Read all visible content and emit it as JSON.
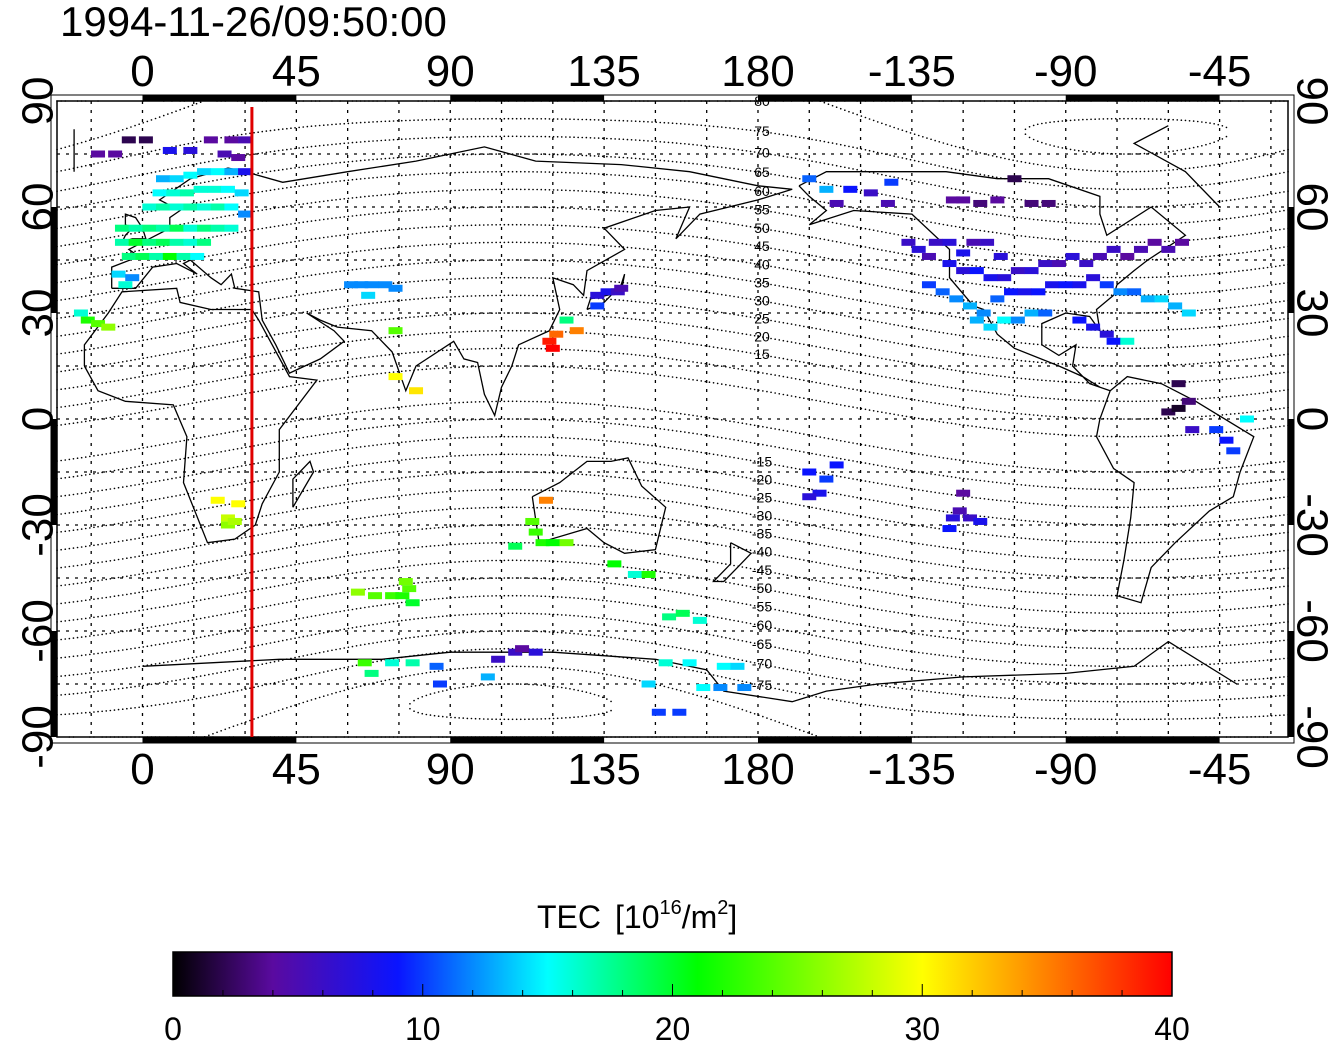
{
  "title": "1994-11-26/09:50:00",
  "colorbar": {
    "label": "TEC",
    "unit_prefix": "[10",
    "unit_exp": "16",
    "unit_mid": "/m",
    "unit_exp2": "2",
    "unit_suffix": "]",
    "ticks": [
      "0",
      "10",
      "20",
      "30",
      "40"
    ],
    "range": [
      0,
      40
    ],
    "stops": [
      {
        "v": 0,
        "c": "#000000"
      },
      {
        "v": 4,
        "c": "#5a0aa0"
      },
      {
        "v": 9,
        "c": "#0a14ff"
      },
      {
        "v": 15,
        "c": "#00ffff"
      },
      {
        "v": 21,
        "c": "#00ff00"
      },
      {
        "v": 30,
        "c": "#ffff00"
      },
      {
        "v": 34,
        "c": "#ff9a00"
      },
      {
        "v": 40,
        "c": "#ff0000"
      }
    ]
  },
  "chart_data": {
    "type": "scatter",
    "title": "1994-11-26/09:50:00",
    "x_ticks_top": [
      "0",
      "45",
      "90",
      "135",
      "180",
      "-135",
      "-90",
      "-45"
    ],
    "x_ticks_bottom": [
      "0",
      "45",
      "90",
      "135",
      "180",
      "-135",
      "-90",
      "-45"
    ],
    "y_ticks_left": [
      "90",
      "60",
      "30",
      "0",
      "-30",
      "-60",
      "-90"
    ],
    "y_ticks_right": [
      "90",
      "60",
      "30",
      "0",
      "-30",
      "-60",
      "-90"
    ],
    "lon_range": [
      -25,
      335
    ],
    "lat_range": [
      -90,
      90
    ],
    "terminator_lon": 32,
    "terminator_color": "#e00000",
    "geomag_pole": {
      "lat": 80,
      "lon": -72
    },
    "geomag_labels_north": [
      "80",
      "75",
      "70",
      "65",
      "60",
      "55",
      "50",
      "45",
      "40",
      "35",
      "30",
      "25",
      "20",
      "15"
    ],
    "geomag_labels_south": [
      "-15",
      "-20",
      "-25",
      "-30",
      "-35",
      "-40",
      "-45",
      "-50",
      "-55",
      "-60",
      "-65",
      "-70",
      "-75"
    ],
    "points_lon_lat_tec": [
      [
        -13,
        75,
        4
      ],
      [
        -8,
        75,
        4
      ],
      [
        -4,
        79,
        2
      ],
      [
        1,
        79,
        2
      ],
      [
        8,
        76,
        8
      ],
      [
        14,
        76,
        7
      ],
      [
        20,
        79,
        4
      ],
      [
        26,
        79,
        4
      ],
      [
        30,
        79,
        5
      ],
      [
        24,
        75,
        5
      ],
      [
        28,
        74,
        4
      ],
      [
        6,
        68,
        13
      ],
      [
        10,
        68,
        14
      ],
      [
        14,
        69,
        15
      ],
      [
        18,
        70,
        14
      ],
      [
        22,
        70,
        15
      ],
      [
        26,
        70,
        13
      ],
      [
        30,
        70,
        8
      ],
      [
        5,
        64,
        15
      ],
      [
        9,
        64,
        16
      ],
      [
        13,
        64,
        17
      ],
      [
        17,
        65,
        16
      ],
      [
        21,
        65,
        16
      ],
      [
        25,
        65,
        15
      ],
      [
        29,
        64,
        14
      ],
      [
        2,
        60,
        16
      ],
      [
        6,
        60,
        17
      ],
      [
        10,
        60,
        16
      ],
      [
        14,
        60,
        17
      ],
      [
        18,
        60,
        16
      ],
      [
        22,
        60,
        17
      ],
      [
        26,
        60,
        15
      ],
      [
        30,
        58,
        12
      ],
      [
        -6,
        54,
        18
      ],
      [
        -2,
        54,
        17
      ],
      [
        2,
        54,
        18
      ],
      [
        6,
        54,
        17
      ],
      [
        10,
        54,
        19
      ],
      [
        14,
        54,
        16
      ],
      [
        18,
        54,
        18
      ],
      [
        22,
        54,
        17
      ],
      [
        26,
        54,
        16
      ],
      [
        -6,
        50,
        17
      ],
      [
        -2,
        50,
        20
      ],
      [
        2,
        50,
        18
      ],
      [
        6,
        50,
        19
      ],
      [
        10,
        50,
        17
      ],
      [
        14,
        50,
        16
      ],
      [
        18,
        50,
        18
      ],
      [
        -4,
        46,
        18
      ],
      [
        0,
        46,
        19
      ],
      [
        4,
        46,
        17
      ],
      [
        8,
        46,
        21
      ],
      [
        12,
        46,
        17
      ],
      [
        16,
        46,
        15
      ],
      [
        -7,
        41,
        14
      ],
      [
        -3,
        40,
        12
      ],
      [
        -5,
        38,
        16
      ],
      [
        -18,
        30,
        16
      ],
      [
        -16,
        28,
        22
      ],
      [
        -13,
        27,
        24
      ],
      [
        -10,
        26,
        26
      ],
      [
        61,
        38,
        12
      ],
      [
        64,
        38,
        12
      ],
      [
        67,
        38,
        12
      ],
      [
        71,
        38,
        12
      ],
      [
        74,
        37,
        12
      ],
      [
        66,
        35,
        14
      ],
      [
        74,
        25,
        24
      ],
      [
        74,
        12,
        30
      ],
      [
        80,
        8,
        31
      ],
      [
        133,
        35,
        7
      ],
      [
        136,
        36,
        8
      ],
      [
        139,
        36,
        6
      ],
      [
        140,
        37,
        5
      ],
      [
        133,
        32,
        10
      ],
      [
        124,
        28,
        18
      ],
      [
        121,
        24,
        36
      ],
      [
        127,
        25,
        35
      ],
      [
        119,
        22,
        39
      ],
      [
        120,
        20,
        40
      ],
      [
        22,
        -23,
        30
      ],
      [
        28,
        -24,
        30
      ],
      [
        25,
        -28,
        28
      ],
      [
        25,
        -30,
        26
      ],
      [
        27,
        -29,
        27
      ],
      [
        118,
        -23,
        35
      ],
      [
        114,
        -29,
        24
      ],
      [
        115,
        -32,
        23
      ],
      [
        117,
        -35,
        22
      ],
      [
        120,
        -35,
        21
      ],
      [
        124,
        -35,
        25
      ],
      [
        109,
        -36,
        19
      ],
      [
        138,
        -41,
        21
      ],
      [
        144,
        -44,
        16
      ],
      [
        148,
        -44,
        22
      ],
      [
        154,
        -56,
        18
      ],
      [
        158,
        -55,
        19
      ],
      [
        163,
        -57,
        16
      ],
      [
        63,
        -49,
        26
      ],
      [
        68,
        -50,
        24
      ],
      [
        73,
        -50,
        23
      ],
      [
        76,
        -50,
        22
      ],
      [
        78,
        -48,
        24
      ],
      [
        77,
        -46,
        25
      ],
      [
        79,
        -52,
        20
      ],
      [
        65,
        -69,
        23
      ],
      [
        67,
        -72,
        18
      ],
      [
        73,
        -69,
        16
      ],
      [
        79,
        -69,
        17
      ],
      [
        86,
        -70,
        11
      ],
      [
        87,
        -75,
        10
      ],
      [
        101,
        -73,
        13
      ],
      [
        104,
        -68,
        6
      ],
      [
        109,
        -66,
        6
      ],
      [
        115,
        -66,
        7
      ],
      [
        111,
        -65,
        4
      ],
      [
        148,
        -75,
        14
      ],
      [
        153,
        -69,
        16
      ],
      [
        160,
        -69,
        15
      ],
      [
        164,
        -76,
        15
      ],
      [
        170,
        -70,
        15
      ],
      [
        174,
        -70,
        14
      ],
      [
        176,
        -76,
        12
      ],
      [
        151,
        -83,
        10
      ],
      [
        157,
        -83,
        10
      ],
      [
        169,
        -76,
        12
      ],
      [
        -165,
        68,
        11
      ],
      [
        -160,
        65,
        13
      ],
      [
        -153,
        65,
        9
      ],
      [
        -147,
        64,
        6
      ],
      [
        -142,
        61,
        5
      ],
      [
        -157,
        61,
        5
      ],
      [
        -141,
        67,
        10
      ],
      [
        -120,
        62,
        4
      ],
      [
        -115,
        61,
        3
      ],
      [
        -110,
        62,
        4
      ],
      [
        -105,
        68,
        2
      ],
      [
        -100,
        61,
        3
      ],
      [
        -95,
        61,
        3
      ],
      [
        -123,
        62,
        4
      ],
      [
        -136,
        50,
        6
      ],
      [
        -133,
        48,
        7
      ],
      [
        -130,
        46,
        5
      ],
      [
        -128,
        50,
        6
      ],
      [
        -124,
        50,
        7
      ],
      [
        -120,
        47,
        8
      ],
      [
        -117,
        50,
        5
      ],
      [
        -113,
        50,
        6
      ],
      [
        -109,
        46,
        7
      ],
      [
        -124,
        44,
        8
      ],
      [
        -120,
        42,
        7
      ],
      [
        -116,
        42,
        9
      ],
      [
        -112,
        40,
        8
      ],
      [
        -108,
        40,
        7
      ],
      [
        -104,
        42,
        6
      ],
      [
        -100,
        42,
        7
      ],
      [
        -96,
        44,
        6
      ],
      [
        -92,
        44,
        5
      ],
      [
        -88,
        46,
        7
      ],
      [
        -84,
        44,
        6
      ],
      [
        -80,
        46,
        5
      ],
      [
        -76,
        48,
        6
      ],
      [
        -72,
        46,
        4
      ],
      [
        -68,
        48,
        5
      ],
      [
        -64,
        50,
        4
      ],
      [
        -60,
        48,
        5
      ],
      [
        -56,
        50,
        4
      ],
      [
        -130,
        38,
        10
      ],
      [
        -126,
        36,
        11
      ],
      [
        -122,
        34,
        12
      ],
      [
        -118,
        32,
        13
      ],
      [
        -114,
        30,
        12
      ],
      [
        -110,
        34,
        11
      ],
      [
        -106,
        36,
        9
      ],
      [
        -102,
        36,
        8
      ],
      [
        -98,
        36,
        9
      ],
      [
        -94,
        38,
        8
      ],
      [
        -90,
        38,
        9
      ],
      [
        -86,
        38,
        8
      ],
      [
        -82,
        40,
        7
      ],
      [
        -78,
        38,
        10
      ],
      [
        -74,
        36,
        12
      ],
      [
        -70,
        36,
        11
      ],
      [
        -66,
        34,
        13
      ],
      [
        -62,
        34,
        14
      ],
      [
        -58,
        32,
        13
      ],
      [
        -54,
        30,
        14
      ],
      [
        -116,
        28,
        13
      ],
      [
        -112,
        26,
        14
      ],
      [
        -108,
        28,
        15
      ],
      [
        -104,
        28,
        12
      ],
      [
        -100,
        30,
        13
      ],
      [
        -96,
        30,
        11
      ],
      [
        -86,
        28,
        9
      ],
      [
        -82,
        26,
        8
      ],
      [
        -78,
        24,
        7
      ],
      [
        -76,
        22,
        9
      ],
      [
        -72,
        22,
        16
      ],
      [
        -57,
        10,
        2
      ],
      [
        -60,
        2,
        2
      ],
      [
        -57,
        3,
        1
      ],
      [
        -54,
        5,
        3
      ],
      [
        -53,
        -3,
        6
      ],
      [
        -46,
        -3,
        10
      ],
      [
        -43,
        -6,
        9
      ],
      [
        -41,
        -9,
        10
      ],
      [
        -37,
        0,
        15
      ],
      [
        -165,
        -15,
        9
      ],
      [
        -157,
        -13,
        9
      ],
      [
        -160,
        -17,
        10
      ],
      [
        -162,
        -21,
        8
      ],
      [
        -165,
        -22,
        7
      ],
      [
        -120,
        -21,
        4
      ],
      [
        -121,
        -26,
        5
      ],
      [
        -123,
        -28,
        7
      ],
      [
        -118,
        -28,
        6
      ],
      [
        -115,
        -29,
        8
      ],
      [
        -124,
        -31,
        9
      ]
    ]
  }
}
